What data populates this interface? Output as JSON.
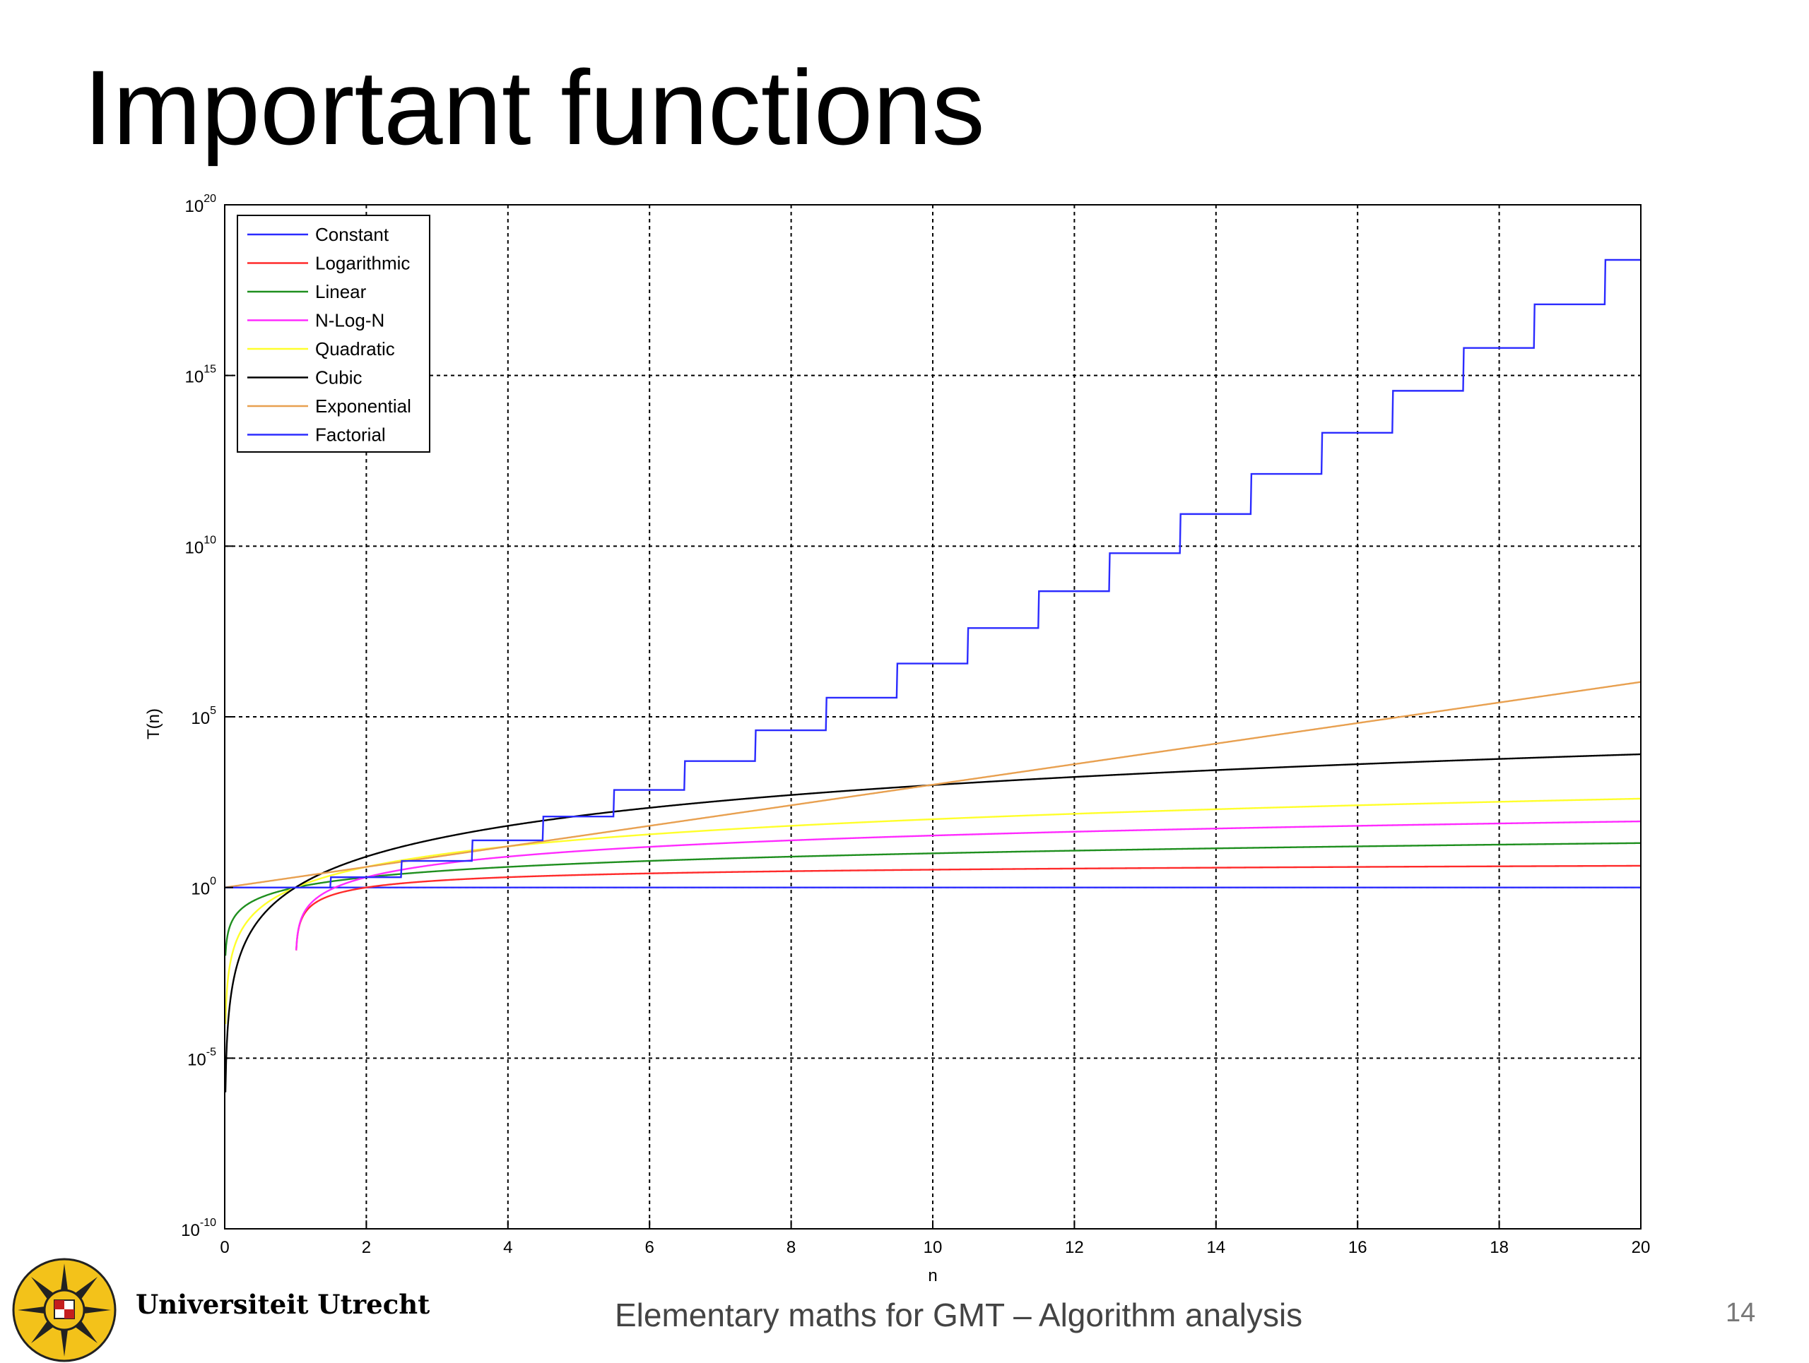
{
  "slide": {
    "title": "Important functions",
    "footer_text": "Elementary maths for GMT – Algorithm analysis",
    "page_number": "14",
    "institution": "Universiteit Utrecht"
  },
  "chart_data": {
    "type": "line",
    "title": "",
    "xlabel": "n",
    "ylabel": "T(n)",
    "xlim": [
      0,
      20
    ],
    "ylim_log10": [
      -10,
      20
    ],
    "y_scale": "log",
    "grid": true,
    "legend_position": "top-left",
    "x_ticks": [
      "0",
      "2",
      "4",
      "6",
      "8",
      "10",
      "12",
      "14",
      "16",
      "18",
      "20"
    ],
    "y_ticks": [
      {
        "base": "10",
        "exp": "-10"
      },
      {
        "base": "10",
        "exp": "-5"
      },
      {
        "base": "10",
        "exp": "0"
      },
      {
        "base": "10",
        "exp": "5"
      },
      {
        "base": "10",
        "exp": "10"
      },
      {
        "base": "10",
        "exp": "15"
      },
      {
        "base": "10",
        "exp": "20"
      }
    ],
    "series": [
      {
        "name": "Constant",
        "color": "#2b2bff",
        "function": "1"
      },
      {
        "name": "Logarithmic",
        "color": "#ff2b2b",
        "function": "log2(n)"
      },
      {
        "name": "Linear",
        "color": "#1f8f1f",
        "function": "n"
      },
      {
        "name": "N-Log-N",
        "color": "#ff2bff",
        "function": "n*log2(n)"
      },
      {
        "name": "Quadratic",
        "color": "#ffff2b",
        "function": "n^2"
      },
      {
        "name": "Cubic",
        "color": "#000000",
        "function": "n^3"
      },
      {
        "name": "Exponential",
        "color": "#e8a050",
        "function": "2^n"
      },
      {
        "name": "Factorial",
        "color": "#2b2bff",
        "function": "round(n)!"
      }
    ]
  }
}
